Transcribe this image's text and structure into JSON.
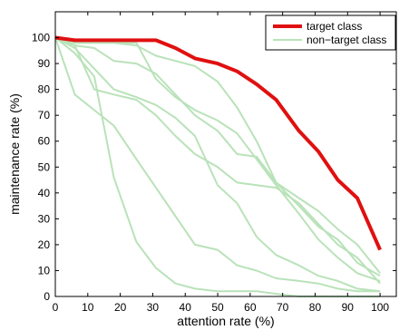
{
  "chart_data": {
    "type": "line",
    "title": "",
    "xlabel": "attention rate (%)",
    "ylabel": "maintenance rate (%)",
    "xlim": [
      0,
      105
    ],
    "ylim": [
      0,
      110
    ],
    "xticks": [
      0,
      10,
      20,
      30,
      40,
      50,
      60,
      70,
      80,
      90,
      100
    ],
    "yticks": [
      0,
      10,
      20,
      30,
      40,
      50,
      60,
      70,
      80,
      90,
      100
    ],
    "grid": false,
    "legend": {
      "placement": "top-right",
      "entries": [
        {
          "label": "target class",
          "color": "#e01010"
        },
        {
          "label": "non−target class",
          "color": "#b9e2b9"
        }
      ]
    },
    "series": [
      {
        "name": "target class",
        "color": "#e01010",
        "points": [
          [
            0,
            100
          ],
          [
            6,
            99
          ],
          [
            12,
            99
          ],
          [
            18,
            99
          ],
          [
            25,
            99
          ],
          [
            31,
            99
          ],
          [
            37,
            96
          ],
          [
            43,
            92
          ],
          [
            50,
            90
          ],
          [
            56,
            87
          ],
          [
            62,
            82
          ],
          [
            68,
            76
          ],
          [
            75,
            64
          ],
          [
            81,
            56
          ],
          [
            87,
            45
          ],
          [
            93,
            38
          ],
          [
            100,
            18
          ]
        ]
      },
      {
        "name": "non−target class",
        "color": "#b9e2b9",
        "lines": [
          [
            [
              0,
              100
            ],
            [
              6,
              94
            ],
            [
              12,
              85
            ],
            [
              18,
              46
            ],
            [
              25,
              21
            ],
            [
              31,
              11
            ],
            [
              37,
              5
            ],
            [
              43,
              3
            ],
            [
              50,
              2
            ],
            [
              56,
              2
            ],
            [
              62,
              2
            ],
            [
              68,
              1
            ],
            [
              75,
              0
            ],
            [
              81,
              0
            ],
            [
              87,
              0
            ],
            [
              93,
              0
            ],
            [
              100,
              0
            ]
          ],
          [
            [
              0,
              100
            ],
            [
              6,
              78
            ],
            [
              12,
              72
            ],
            [
              18,
              66
            ],
            [
              25,
              53
            ],
            [
              31,
              42
            ],
            [
              37,
              31
            ],
            [
              43,
              20
            ],
            [
              50,
              18
            ],
            [
              56,
              12
            ],
            [
              62,
              10
            ],
            [
              68,
              7
            ],
            [
              75,
              6
            ],
            [
              81,
              5
            ],
            [
              87,
              3
            ],
            [
              93,
              2
            ],
            [
              100,
              2
            ]
          ],
          [
            [
              0,
              100
            ],
            [
              6,
              97
            ],
            [
              12,
              80
            ],
            [
              18,
              78
            ],
            [
              25,
              76
            ],
            [
              31,
              70
            ],
            [
              37,
              62
            ],
            [
              43,
              55
            ],
            [
              50,
              50
            ],
            [
              56,
              44
            ],
            [
              62,
              43
            ],
            [
              68,
              42
            ],
            [
              75,
              36
            ],
            [
              81,
              28
            ],
            [
              87,
              20
            ],
            [
              93,
              15
            ],
            [
              100,
              5
            ]
          ],
          [
            [
              0,
              100
            ],
            [
              6,
              97
            ],
            [
              12,
              96
            ],
            [
              18,
              91
            ],
            [
              25,
              90
            ],
            [
              31,
              86
            ],
            [
              37,
              78
            ],
            [
              43,
              70
            ],
            [
              50,
              64
            ],
            [
              56,
              55
            ],
            [
              62,
              54
            ],
            [
              68,
              44
            ],
            [
              75,
              35
            ],
            [
              81,
              27
            ],
            [
              87,
              22
            ],
            [
              93,
              13
            ],
            [
              100,
              8
            ]
          ],
          [
            [
              0,
              100
            ],
            [
              6,
              96
            ],
            [
              12,
              88
            ],
            [
              18,
              80
            ],
            [
              25,
              77
            ],
            [
              31,
              74
            ],
            [
              37,
              69
            ],
            [
              43,
              62
            ],
            [
              50,
              43
            ],
            [
              56,
              36
            ],
            [
              62,
              23
            ],
            [
              68,
              16
            ],
            [
              75,
              12
            ],
            [
              81,
              8
            ],
            [
              87,
              6
            ],
            [
              93,
              3
            ],
            [
              100,
              2
            ]
          ],
          [
            [
              0,
              100
            ],
            [
              6,
              98
            ],
            [
              12,
              98
            ],
            [
              18,
              98
            ],
            [
              25,
              97
            ],
            [
              31,
              93
            ],
            [
              37,
              91
            ],
            [
              43,
              89
            ],
            [
              50,
              83
            ],
            [
              56,
              73
            ],
            [
              62,
              60
            ],
            [
              68,
              44
            ],
            [
              75,
              38
            ],
            [
              81,
              33
            ],
            [
              87,
              26
            ],
            [
              93,
              20
            ],
            [
              100,
              9
            ]
          ],
          [
            [
              0,
              100
            ],
            [
              6,
              98
            ],
            [
              12,
              98
            ],
            [
              18,
              98
            ],
            [
              25,
              98
            ],
            [
              31,
              84
            ],
            [
              37,
              77
            ],
            [
              43,
              72
            ],
            [
              50,
              68
            ],
            [
              56,
              63
            ],
            [
              62,
              53
            ],
            [
              68,
              43
            ],
            [
              75,
              32
            ],
            [
              81,
              22
            ],
            [
              87,
              15
            ],
            [
              93,
              9
            ],
            [
              100,
              6
            ]
          ]
        ]
      }
    ]
  }
}
